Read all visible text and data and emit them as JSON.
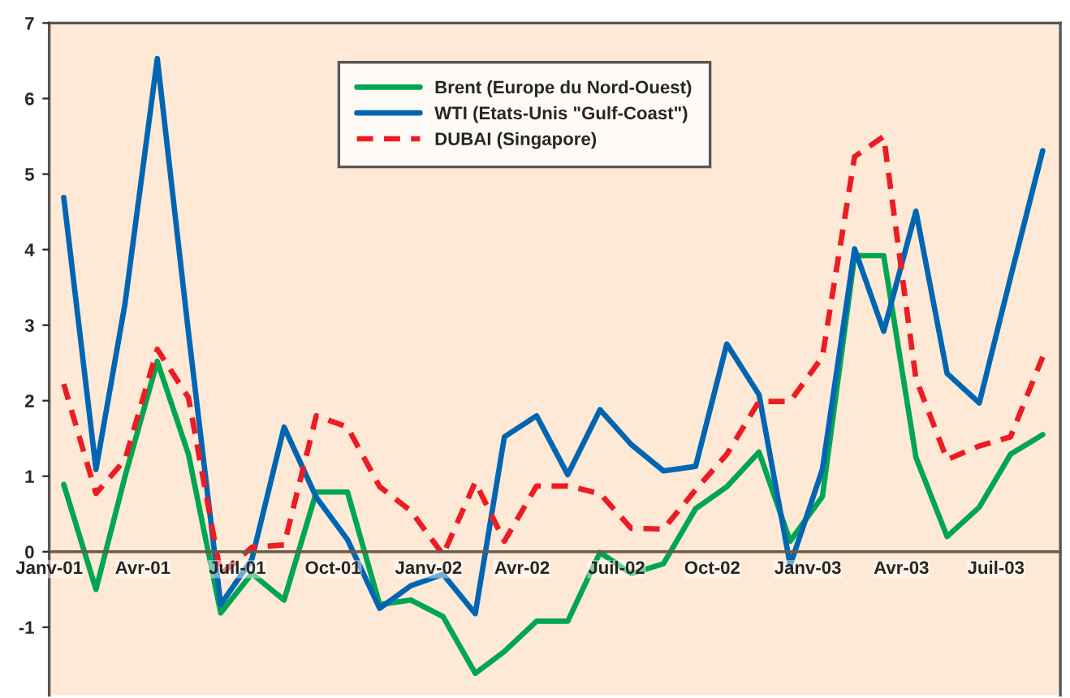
{
  "chart_data": {
    "type": "line",
    "x": [
      "2001-01-15",
      "2001-02-15",
      "2001-03-15",
      "2001-04-15",
      "2001-05-15",
      "2001-06-15",
      "2001-07-15",
      "2001-08-15",
      "2001-09-15",
      "2001-10-15",
      "2001-11-15",
      "2001-12-15",
      "2002-01-15",
      "2002-02-15",
      "2002-03-15",
      "2002-04-15",
      "2002-05-15",
      "2002-06-15",
      "2002-07-15",
      "2002-08-15",
      "2002-09-15",
      "2002-10-15",
      "2002-11-15",
      "2002-12-15",
      "2003-01-15",
      "2003-02-15",
      "2003-03-15",
      "2003-04-15",
      "2003-05-15",
      "2003-06-15",
      "2003-07-15",
      "2003-08-15"
    ],
    "series": [
      {
        "name": "Brent (Europe du Nord-Ouest)",
        "color": "#00a651",
        "line_style": "solid",
        "values": [
          0.89,
          -0.5,
          1.0,
          2.52,
          1.29,
          -0.81,
          -0.29,
          -0.64,
          0.79,
          0.79,
          -0.7,
          -0.64,
          -0.86,
          -1.61,
          -1.32,
          -0.92,
          -0.92,
          -0.01,
          -0.29,
          -0.16,
          0.57,
          0.86,
          1.32,
          0.14,
          0.73,
          3.92,
          3.92,
          1.25,
          0.2,
          0.59,
          1.29,
          1.55
        ]
      },
      {
        "name": "WTI (Etats-Unis \"Gulf-Coast\")",
        "color": "#0066b3",
        "line_style": "solid",
        "values": [
          4.69,
          1.09,
          3.29,
          6.53,
          2.9,
          -0.7,
          -0.1,
          1.65,
          0.72,
          0.16,
          -0.75,
          -0.45,
          -0.3,
          -0.82,
          1.52,
          1.8,
          1.02,
          1.88,
          1.42,
          1.07,
          1.13,
          2.75,
          2.08,
          -0.18,
          1.09,
          4.01,
          2.92,
          4.51,
          2.36,
          1.97,
          3.63,
          5.31
        ]
      },
      {
        "name": "DUBAI (Singapore)",
        "color": "#ed1c24",
        "line_style": "dashed",
        "values": [
          2.22,
          0.77,
          1.22,
          2.68,
          2.04,
          -0.3,
          0.06,
          0.09,
          1.8,
          1.65,
          0.86,
          0.54,
          -0.04,
          0.92,
          0.14,
          0.87,
          0.87,
          0.77,
          0.31,
          0.3,
          0.82,
          1.29,
          1.99,
          1.99,
          2.58,
          5.23,
          5.5,
          2.29,
          1.22,
          1.4,
          1.52,
          2.58
        ]
      }
    ],
    "xlim": [
      "2001-01-01",
      "2003-09-01"
    ],
    "xticks": [
      {
        "value": "2001-01-01",
        "label": "Janv-01"
      },
      {
        "value": "2001-04-01",
        "label": "Avr-01"
      },
      {
        "value": "2001-07-01",
        "label": "Juil-01"
      },
      {
        "value": "2001-10-01",
        "label": "Oct-01"
      },
      {
        "value": "2002-01-01",
        "label": "Janv-02"
      },
      {
        "value": "2002-04-01",
        "label": "Avr-02"
      },
      {
        "value": "2002-07-01",
        "label": "Juil-02"
      },
      {
        "value": "2002-10-01",
        "label": "Oct-02"
      },
      {
        "value": "2003-01-01",
        "label": "Janv-03"
      },
      {
        "value": "2003-04-01",
        "label": "Avr-03"
      },
      {
        "value": "2003-07-01",
        "label": "Juil-03"
      }
    ],
    "ylim": [
      -1.9,
      7
    ],
    "yticks": [
      -1,
      0,
      1,
      2,
      3,
      4,
      5,
      6,
      7
    ],
    "grid": false,
    "legend": "top",
    "marker": "none"
  }
}
